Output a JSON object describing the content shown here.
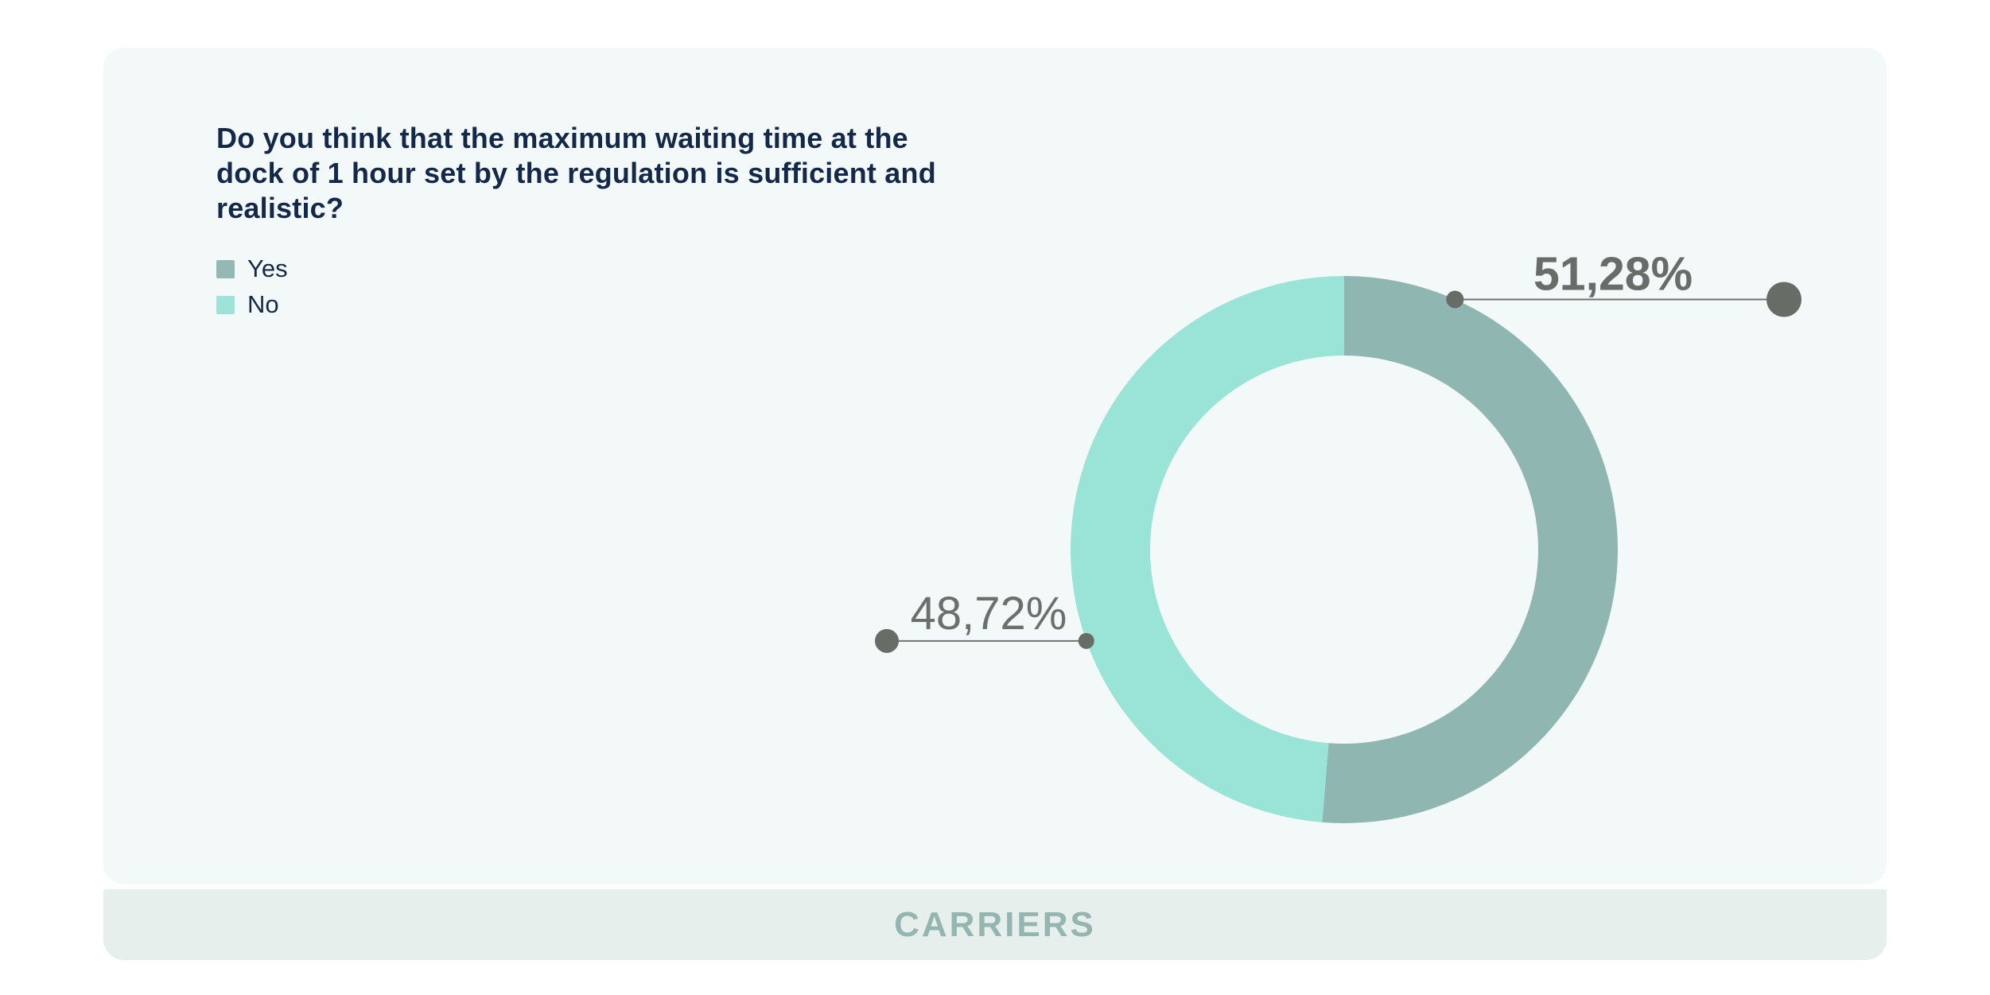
{
  "card": {
    "title": "Do you think that the maximum waiting time at the dock of 1 hour set by the regulation is sufficient and realistic?",
    "footer": {
      "label": "CARRIERS"
    }
  },
  "legend": {
    "items": [
      {
        "label": "Yes",
        "color": "#94B8B3"
      },
      {
        "label": "No",
        "color": "#9FE2D8"
      }
    ]
  },
  "chart_data": {
    "type": "pie",
    "subtype": "donut",
    "title": "Do you think that the maximum waiting time at the dock of 1 hour set by the regulation is sufficient and realistic?",
    "categories": [
      "Yes",
      "No"
    ],
    "values": [
      51.28,
      48.72
    ],
    "colors": [
      "#8FB6B1",
      "#9AE3D7"
    ],
    "inner_radius_ratio": 0.71,
    "start_angle": "top",
    "direction": "clockwise",
    "legend_position": "top-left",
    "callouts": [
      {
        "category": "Yes",
        "label": "51,28%",
        "bold": true,
        "color": "#696D69"
      },
      {
        "category": "No",
        "label": "48,72%",
        "bold": false,
        "color": "#6C706C"
      }
    ],
    "footer_annotation": "CARRIERS"
  },
  "theme": {
    "page_bg": "#FFFFFF",
    "card_bg": "#F3F9F8",
    "band_bg": "#E7EFED",
    "band_text": "#95B5B1",
    "title_color": "#14294A",
    "callout_line": "#70746F",
    "callout_dot": "#676C67"
  }
}
